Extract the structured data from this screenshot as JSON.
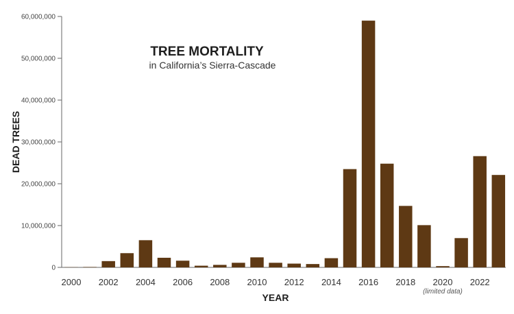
{
  "chart_data": {
    "type": "bar",
    "title": "TREE MORTALITY",
    "subtitle": "in California’s Sierra-Cascade",
    "xlabel": "YEAR",
    "ylabel": "DEAD TREES",
    "ylim": [
      0,
      60000000
    ],
    "yticks": [
      0,
      10000000,
      20000000,
      30000000,
      40000000,
      50000000,
      60000000
    ],
    "ytick_labels": [
      "0",
      "10,000,000",
      "20,000,000",
      "30,000,000",
      "40,000,000",
      "50,000,000",
      "60,000,000"
    ],
    "categories": [
      "2000",
      "2001",
      "2002",
      "2003",
      "2004",
      "2005",
      "2006",
      "2007",
      "2008",
      "2009",
      "2010",
      "2011",
      "2012",
      "2013",
      "2014",
      "2015",
      "2016",
      "2017",
      "2018",
      "2019",
      "2020",
      "2021",
      "2022",
      "2023"
    ],
    "xtick_labels": [
      "2000",
      "2002",
      "2004",
      "2006",
      "2008",
      "2010",
      "2012",
      "2014",
      "2016",
      "2018",
      "2020",
      "2022"
    ],
    "values": [
      50000,
      100000,
      1500000,
      3400000,
      6500000,
      2300000,
      1600000,
      400000,
      600000,
      1100000,
      2400000,
      1100000,
      900000,
      800000,
      2200000,
      23500000,
      59000000,
      24800000,
      14700000,
      10100000,
      300000,
      7000000,
      26600000,
      22100000
    ],
    "annotations": [
      {
        "year": "2020",
        "text": "(limited data)"
      }
    ],
    "bar_color": "#5e3914",
    "grid": false
  }
}
